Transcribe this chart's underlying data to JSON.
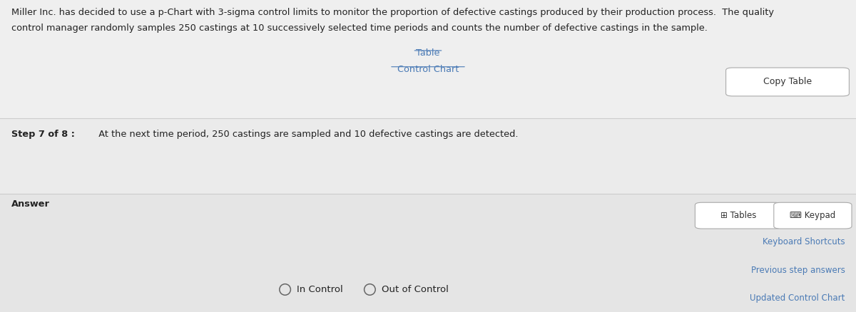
{
  "bg_color": "#e8e8e8",
  "top_text_line1": "Miller Inc. has decided to use a p-Chart with 3-sigma control limits to monitor the proportion of defective castings produced by their production process.  The quality",
  "top_text_line2": "control manager randomly samples 250 castings at 10 successively selected time periods and counts the number of defective castings in the sample.",
  "table_link": "Table",
  "control_chart_link": "Control Chart",
  "copy_table_btn": "Copy Table",
  "step_bold": "Step 7 of 8 :",
  "step_text_body": "  At the next time period, 250 castings are sampled and 10 defective castings are detected.",
  "answer_label": "Answer",
  "tables_btn": "Tables",
  "keypad_btn": "Keypad",
  "keyboard_shortcuts": "Keyboard Shortcuts",
  "previous_step": "Previous step answers",
  "updated_chart": "Updated Control Chart",
  "radio1": "In Control",
  "radio2": "Out of Control",
  "link_color": "#4a7ab5",
  "text_color": "#222222",
  "separator_color": "#cccccc",
  "top_bg_color": "#efefef",
  "mid_bg_color": "#ebebeb",
  "ans_bg_color": "#e5e5e5"
}
